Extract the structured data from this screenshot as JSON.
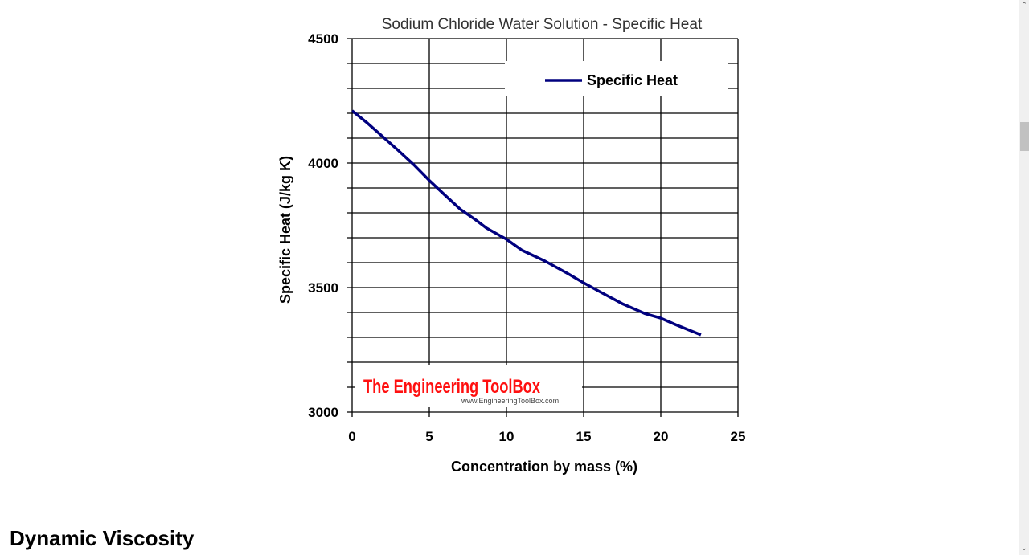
{
  "chart_data": {
    "type": "line",
    "title": "Sodium Chloride Water Solution - Specific Heat",
    "xlabel": "Concentration by mass (%)",
    "ylabel": "Specific Heat (J/kg K)",
    "xlim": [
      0,
      25
    ],
    "ylim": [
      3000,
      4500
    ],
    "xticks": [
      "0",
      "5",
      "10",
      "15",
      "20",
      "25"
    ],
    "yticks": [
      "3000",
      "3500",
      "4000",
      "4500"
    ],
    "grid": true,
    "legend_position": "top-right",
    "series": [
      {
        "name": "Specific Heat",
        "color": "#00007f",
        "x": [
          0,
          1,
          2,
          3,
          4,
          5,
          6,
          7,
          8,
          8.7,
          10,
          11,
          12.5,
          14,
          15,
          16,
          17.5,
          19,
          20,
          21,
          22.6
        ],
        "y": [
          4210,
          4160,
          4105,
          4050,
          3993,
          3930,
          3872,
          3815,
          3772,
          3739,
          3694,
          3650,
          3606,
          3555,
          3519,
          3485,
          3435,
          3395,
          3377,
          3350,
          3310
        ]
      }
    ]
  },
  "watermark": {
    "brand": "The Engineering ToolBox",
    "url": "www.EngineeringToolBox.com"
  },
  "page": {
    "next_heading": "Dynamic Viscosity"
  }
}
